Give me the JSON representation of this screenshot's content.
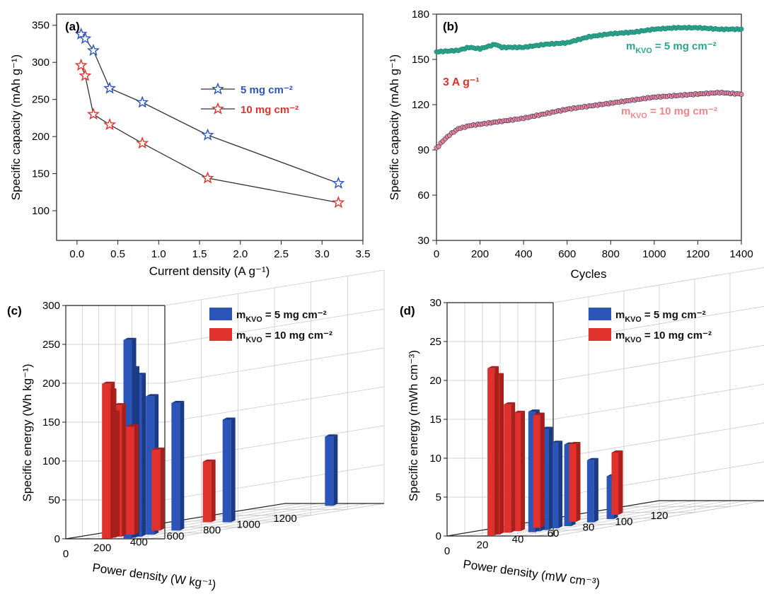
{
  "colors": {
    "blue": "#2b55b8",
    "red": "#e0312c",
    "red_dark": "#a81f1c",
    "teal": "#2aa58d",
    "pink": "#f0868a",
    "navy": "#232e7a",
    "axis": "#222222",
    "grid": "#c9c9c9"
  },
  "chart_data": [
    {
      "panel": "(a)",
      "type": "line",
      "xlabel": "Current density (A g⁻¹)",
      "ylabel": "Specific capacity (mAh g⁻¹)",
      "xlim": [
        -0.25,
        3.5
      ],
      "ylim": [
        60,
        365
      ],
      "xticks": [
        "0.0",
        "0.5",
        "1.0",
        "1.5",
        "2.0",
        "2.5",
        "3.0",
        "3.5"
      ],
      "yticks": [
        "100",
        "150",
        "200",
        "250",
        "300",
        "350"
      ],
      "marker": "star",
      "series": [
        {
          "name": "5 mg cm⁻²",
          "x": [
            0.05,
            0.1,
            0.2,
            0.4,
            0.8,
            1.6,
            3.2
          ],
          "y": [
            338,
            332,
            316,
            265,
            246,
            202,
            137
          ]
        },
        {
          "name": "10 mg cm⁻²",
          "x": [
            0.05,
            0.1,
            0.2,
            0.4,
            0.8,
            1.6,
            3.2
          ],
          "y": [
            296,
            282,
            230,
            216,
            191,
            144,
            111
          ]
        }
      ]
    },
    {
      "panel": "(b)",
      "type": "scatter",
      "xlabel": "Cycles",
      "ylabel": "Specific capacity (mAh g⁻¹)",
      "xlim": [
        0,
        1400
      ],
      "ylim": [
        30,
        180
      ],
      "xticks": [
        "0",
        "200",
        "400",
        "600",
        "800",
        "1000",
        "1200",
        "1400"
      ],
      "yticks": [
        "30",
        "60",
        "90",
        "120",
        "150",
        "180"
      ],
      "annotation": "3 A g⁻¹",
      "series": [
        {
          "name": "mKVO = 5 mg cm⁻²",
          "label_main": "m",
          "label_sub": "KVO",
          "label_rest": " = 5 mg cm⁻²",
          "x": [
            0,
            100,
            150,
            200,
            270,
            300,
            400,
            500,
            600,
            700,
            800,
            900,
            1000,
            1100,
            1200,
            1300,
            1400
          ],
          "y": [
            155,
            156,
            158,
            157,
            160,
            158,
            158,
            160,
            161,
            165,
            167,
            168,
            170,
            171,
            171,
            170,
            170
          ]
        },
        {
          "name": "mKVO = 10 mg cm⁻²",
          "label_main": "m",
          "label_sub": "KVO",
          "label_rest": " = 10 mg cm⁻²",
          "x": [
            0,
            30,
            60,
            100,
            150,
            200,
            300,
            400,
            500,
            600,
            700,
            800,
            900,
            1000,
            1100,
            1200,
            1300,
            1400
          ],
          "y": [
            91,
            96,
            100,
            104,
            106,
            107,
            109,
            111,
            114,
            117,
            119,
            121,
            123,
            125,
            126,
            127,
            128,
            127
          ]
        }
      ]
    },
    {
      "panel": "(c)",
      "type": "bar",
      "xlabel": "Power density (W kg⁻¹)",
      "ylabel": "Specific energy (Wh kg⁻¹)",
      "xticks": [
        "0",
        "200",
        "400",
        "600",
        "800",
        "1000",
        "1200"
      ],
      "yticks": [
        "0",
        "50",
        "100",
        "150",
        "200",
        "250",
        "300"
      ],
      "zmax": 300,
      "series": [
        {
          "name": "mKVO = 5 mg cm⁻²",
          "label_main": "m",
          "label_sub": "KVO",
          "label_rest": " = 5 mg cm⁻²",
          "x": [
            35,
            70,
            140,
            280,
            560,
            1120,
            2240
          ],
          "values": [
            255,
            218,
            208,
            178,
            164,
            132,
            89
          ]
        },
        {
          "name": "mKVO = 10 mg cm⁻²",
          "label_main": "m",
          "label_sub": "KVO",
          "label_rest": " = 10 mg cm⁻²",
          "x": [
            17,
            35,
            70,
            140,
            280,
            560,
            1120
          ],
          "values": [
            199,
            190,
            161,
            169,
            139,
            104,
            78
          ]
        }
      ]
    },
    {
      "panel": "(d)",
      "type": "bar",
      "xlabel": "Power density (mW cm⁻³)",
      "ylabel": "Specific energy (mWh cm⁻³)",
      "xticks": [
        "0",
        "20",
        "40",
        "60",
        "80",
        "100",
        "120"
      ],
      "yticks": [
        "0",
        "5",
        "10",
        "15",
        "20",
        "25",
        "30"
      ],
      "zmax": 30,
      "series": [
        {
          "name": "mKVO = 5 mg cm⁻²",
          "label_main": "m",
          "label_sub": "KVO",
          "label_rest": " = 5 mg cm⁻²",
          "x": [
            14,
            17,
            22,
            28,
            36,
            50,
            62
          ],
          "values": [
            15.5,
            15,
            13,
            11,
            10.5,
            8,
            5.5
          ]
        },
        {
          "name": "mKVO = 10 mg cm⁻²",
          "label_main": "m",
          "label_sub": "KVO",
          "label_rest": " = 10 mg cm⁻²",
          "x": [
            2,
            5,
            12,
            18,
            30,
            52,
            78
          ],
          "values": [
            21.5,
            20.5,
            16.5,
            15.2,
            14.5,
            10,
            8
          ]
        }
      ]
    }
  ]
}
